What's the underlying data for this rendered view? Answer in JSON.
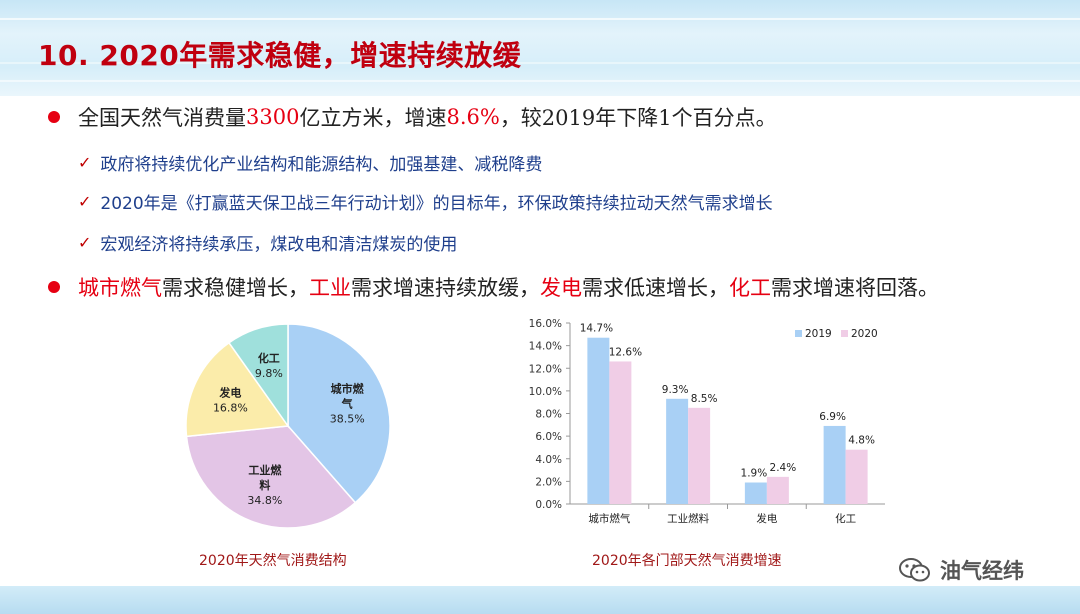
{
  "title": "10. 2020年需求稳健，增速持续放缓",
  "bullet1": {
    "pre": "全国天然气消费量",
    "volume": "3300",
    "mid": "亿立方米，增速",
    "rate": "8.6%",
    "post": "，较2019年下降1个百分点。"
  },
  "checks": [
    "政府将持续优化产业结构和能源结构、加强基建、减税降费",
    "2020年是《打赢蓝天保卫战三年行动计划》的目标年，环保政策持续拉动天然气需求增长",
    "宏观经济将持续承压，煤改电和清洁煤炭的使用"
  ],
  "bullet2": {
    "s1": "城市燃气",
    "t1": "需求稳健增长，",
    "s2": "工业",
    "t2": "需求增速持续放缓，",
    "s3": "发电",
    "t3": "需求低速增长，",
    "s4": "化工",
    "t4": "需求增速将回落。"
  },
  "colors": {
    "accent_red": "#e60012",
    "check_blue": "#1f3f8c",
    "series_2019": "#a9d0f5",
    "series_2020": "#f0cde6",
    "pie_city": "#a9d0f5",
    "pie_industry": "#e3c5e6",
    "pie_power": "#fbecaa",
    "pie_chemical": "#9fe0dc"
  },
  "chart_data": [
    {
      "type": "pie",
      "title": "2020年天然气消费结构",
      "slices": [
        {
          "label_lines": [
            "城市燃",
            "气"
          ],
          "pct_text": "38.5%",
          "value": 38.5
        },
        {
          "label_lines": [
            "工业燃",
            "料"
          ],
          "pct_text": "34.8%",
          "value": 34.8
        },
        {
          "label_lines": [
            "发电"
          ],
          "pct_text": "16.8%",
          "value": 16.8
        },
        {
          "label_lines": [
            "化工"
          ],
          "pct_text": "9.8%",
          "value": 9.8
        }
      ]
    },
    {
      "type": "bar",
      "title": "2020年各门部天然气消费增速",
      "categories": [
        "城市燃气",
        "工业燃料",
        "发电",
        "化工"
      ],
      "series": [
        {
          "name": "2019",
          "values": [
            14.7,
            9.3,
            1.9,
            6.9
          ],
          "labels": [
            "14.7%",
            "9.3%",
            "1.9%",
            "6.9%"
          ]
        },
        {
          "name": "2020",
          "values": [
            12.6,
            8.5,
            2.4,
            4.8
          ],
          "labels": [
            "12.6%",
            "8.5%",
            "2.4%",
            "4.8%"
          ]
        }
      ],
      "ylim": [
        0,
        16
      ],
      "yticks": [
        "0.0%",
        "2.0%",
        "4.0%",
        "6.0%",
        "8.0%",
        "10.0%",
        "12.0%",
        "14.0%",
        "16.0%"
      ],
      "legend": "top-right"
    }
  ],
  "watermark": "油气经纬"
}
